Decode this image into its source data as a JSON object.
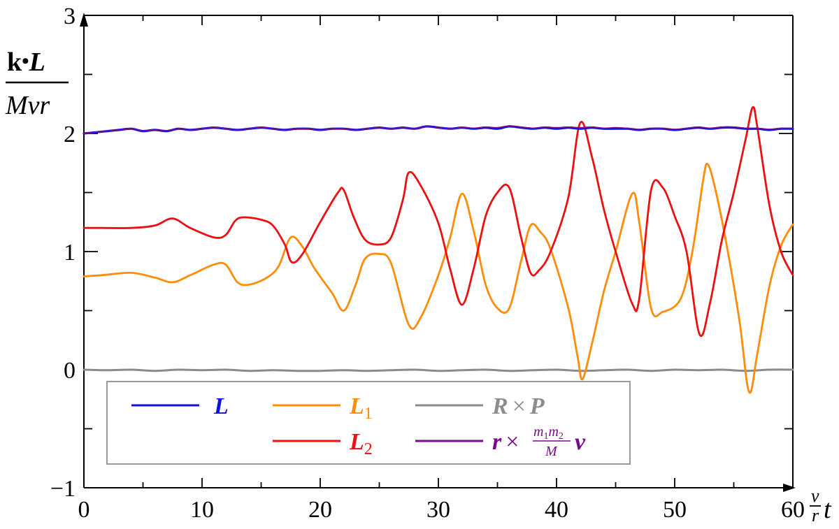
{
  "chart_data": {
    "type": "line",
    "xlim": [
      0,
      60
    ],
    "ylim": [
      -1,
      3
    ],
    "x_ticks": [
      "0",
      "10",
      "20",
      "30",
      "40",
      "50",
      "60"
    ],
    "y_ticks": [
      "−1",
      "0",
      "1",
      "2",
      "3"
    ],
    "x_minor_step": 5,
    "y_minor_step": 0.5,
    "grid": false,
    "legend_position": "lower-left",
    "xlabel": {
      "frac_num": "v",
      "frac_den": "r",
      "var": "t"
    },
    "ylabel": {
      "num_k": "k",
      "num_dot": "•",
      "num_L": "L",
      "den": "Mvr"
    },
    "series": [
      {
        "name": "L",
        "color": "#1010e6",
        "legend": {
          "main": "L"
        },
        "points": [
          [
            0,
            2.0
          ],
          [
            1,
            2.01
          ],
          [
            2,
            2.02
          ],
          [
            3,
            2.03
          ],
          [
            4,
            2.04
          ],
          [
            5,
            2.02
          ],
          [
            6,
            2.03
          ],
          [
            7,
            2.02
          ],
          [
            8,
            2.04
          ],
          [
            9,
            2.03
          ],
          [
            10,
            2.04
          ],
          [
            11,
            2.05
          ],
          [
            12,
            2.04
          ],
          [
            13,
            2.03
          ],
          [
            14,
            2.04
          ],
          [
            15,
            2.05
          ],
          [
            16,
            2.04
          ],
          [
            17,
            2.03
          ],
          [
            18,
            2.04
          ],
          [
            19,
            2.04
          ],
          [
            20,
            2.03
          ],
          [
            21,
            2.04
          ],
          [
            22,
            2.04
          ],
          [
            23,
            2.03
          ],
          [
            24,
            2.04
          ],
          [
            25,
            2.05
          ],
          [
            26,
            2.04
          ],
          [
            27,
            2.05
          ],
          [
            28,
            2.04
          ],
          [
            29,
            2.06
          ],
          [
            30,
            2.05
          ],
          [
            31,
            2.04
          ],
          [
            32,
            2.05
          ],
          [
            33,
            2.04
          ],
          [
            34,
            2.05
          ],
          [
            35,
            2.04
          ],
          [
            36,
            2.06
          ],
          [
            37,
            2.05
          ],
          [
            38,
            2.04
          ],
          [
            39,
            2.05
          ],
          [
            40,
            2.04
          ],
          [
            41,
            2.05
          ],
          [
            42,
            2.04
          ],
          [
            43,
            2.05
          ],
          [
            44,
            2.04
          ],
          [
            45,
            2.04
          ],
          [
            46,
            2.04
          ],
          [
            47,
            2.03
          ],
          [
            48,
            2.04
          ],
          [
            49,
            2.04
          ],
          [
            50,
            2.03
          ],
          [
            51,
            2.04
          ],
          [
            52,
            2.05
          ],
          [
            53,
            2.04
          ],
          [
            54,
            2.05
          ],
          [
            55,
            2.05
          ],
          [
            56,
            2.04
          ],
          [
            57,
            2.04
          ],
          [
            58,
            2.03
          ],
          [
            59,
            2.04
          ],
          [
            60,
            2.04
          ]
        ]
      },
      {
        "name": "L1",
        "color": "#ff8c0a",
        "legend": {
          "main": "L",
          "sub": "1"
        },
        "points": [
          [
            0,
            0.79
          ],
          [
            1.5,
            0.8
          ],
          [
            4,
            0.82
          ],
          [
            6,
            0.78
          ],
          [
            7.5,
            0.74
          ],
          [
            9,
            0.8
          ],
          [
            11,
            0.89
          ],
          [
            12,
            0.89
          ],
          [
            13,
            0.74
          ],
          [
            14,
            0.72
          ],
          [
            15.5,
            0.78
          ],
          [
            16.5,
            0.88
          ],
          [
            17.5,
            1.12
          ],
          [
            18.5,
            1.04
          ],
          [
            19.5,
            0.86
          ],
          [
            21,
            0.65
          ],
          [
            22,
            0.5
          ],
          [
            23,
            0.72
          ],
          [
            23.8,
            0.94
          ],
          [
            25,
            0.98
          ],
          [
            26,
            0.9
          ],
          [
            27.5,
            0.38
          ],
          [
            28.5,
            0.44
          ],
          [
            30,
            0.8
          ],
          [
            31,
            1.12
          ],
          [
            32,
            1.49
          ],
          [
            33,
            1.17
          ],
          [
            34,
            0.72
          ],
          [
            35,
            0.52
          ],
          [
            36,
            0.52
          ],
          [
            37,
            0.92
          ],
          [
            37.8,
            1.22
          ],
          [
            38.6,
            1.17
          ],
          [
            39.5,
            1.02
          ],
          [
            41,
            0.52
          ],
          [
            41.8,
            0.1
          ],
          [
            42.2,
            -0.08
          ],
          [
            43,
            0.22
          ],
          [
            44,
            0.66
          ],
          [
            45,
            1.0
          ],
          [
            46.4,
            1.49
          ],
          [
            47,
            1.25
          ],
          [
            48,
            0.52
          ],
          [
            49,
            0.49
          ],
          [
            50.5,
            0.6
          ],
          [
            51.5,
            1.0
          ],
          [
            52.4,
            1.6
          ],
          [
            52.8,
            1.74
          ],
          [
            53.5,
            1.5
          ],
          [
            54.5,
            1.0
          ],
          [
            55.5,
            0.4
          ],
          [
            56.3,
            -0.19
          ],
          [
            57,
            0.14
          ],
          [
            58,
            0.7
          ],
          [
            59,
            1.05
          ],
          [
            60,
            1.23
          ]
        ]
      },
      {
        "name": "L2",
        "color": "#ee1010",
        "legend": {
          "main": "L",
          "sub": "2"
        },
        "points": [
          [
            0,
            1.2
          ],
          [
            1.5,
            1.2
          ],
          [
            4,
            1.2
          ],
          [
            6,
            1.22
          ],
          [
            7.5,
            1.28
          ],
          [
            9,
            1.2
          ],
          [
            11,
            1.12
          ],
          [
            12,
            1.14
          ],
          [
            12.8,
            1.26
          ],
          [
            13.5,
            1.29
          ],
          [
            15,
            1.27
          ],
          [
            16,
            1.22
          ],
          [
            17,
            1.06
          ],
          [
            17.6,
            0.91
          ],
          [
            18.5,
            0.98
          ],
          [
            20,
            1.25
          ],
          [
            21.5,
            1.5
          ],
          [
            22,
            1.52
          ],
          [
            22.8,
            1.3
          ],
          [
            23.8,
            1.1
          ],
          [
            25,
            1.06
          ],
          [
            26,
            1.12
          ],
          [
            27,
            1.44
          ],
          [
            27.5,
            1.67
          ],
          [
            28.5,
            1.56
          ],
          [
            30,
            1.24
          ],
          [
            31,
            0.85
          ],
          [
            32,
            0.55
          ],
          [
            33,
            0.86
          ],
          [
            34,
            1.3
          ],
          [
            35,
            1.5
          ],
          [
            36,
            1.54
          ],
          [
            37,
            1.12
          ],
          [
            37.8,
            0.82
          ],
          [
            38.5,
            0.84
          ],
          [
            39.5,
            1.0
          ],
          [
            41,
            1.46
          ],
          [
            42,
            2.09
          ],
          [
            43,
            1.8
          ],
          [
            44,
            1.36
          ],
          [
            45,
            1.0
          ],
          [
            46.4,
            0.56
          ],
          [
            47,
            0.6
          ],
          [
            48,
            1.52
          ],
          [
            49,
            1.54
          ],
          [
            50,
            1.3
          ],
          [
            51,
            1.0
          ],
          [
            52.1,
            0.3
          ],
          [
            53,
            0.57
          ],
          [
            54,
            1.1
          ],
          [
            55,
            1.5
          ],
          [
            56,
            1.95
          ],
          [
            56.6,
            2.22
          ],
          [
            57,
            2.05
          ],
          [
            58,
            1.4
          ],
          [
            59,
            1.0
          ],
          [
            60,
            0.8
          ]
        ]
      },
      {
        "name": "R×P",
        "color": "#8c8c8c",
        "legend": {
          "main": "R",
          "mid": "×",
          "main2": "P"
        },
        "points": [
          [
            0,
            0.0
          ],
          [
            2,
            -0.005
          ],
          [
            4,
            0.0
          ],
          [
            6,
            -0.01
          ],
          [
            8,
            0.0
          ],
          [
            10,
            -0.005
          ],
          [
            12,
            0.0
          ],
          [
            14,
            -0.01
          ],
          [
            16,
            -0.005
          ],
          [
            18,
            -0.01
          ],
          [
            20,
            -0.01
          ],
          [
            22,
            -0.005
          ],
          [
            24,
            -0.01
          ],
          [
            26,
            -0.005
          ],
          [
            28,
            0.0
          ],
          [
            30,
            -0.01
          ],
          [
            32,
            -0.005
          ],
          [
            34,
            0.0
          ],
          [
            36,
            -0.01
          ],
          [
            38,
            -0.005
          ],
          [
            40,
            0.0
          ],
          [
            42,
            -0.01
          ],
          [
            44,
            -0.005
          ],
          [
            46,
            0.0
          ],
          [
            48,
            -0.01
          ],
          [
            50,
            0.0
          ],
          [
            52,
            -0.005
          ],
          [
            54,
            0.0
          ],
          [
            56,
            -0.01
          ],
          [
            58,
            0.0
          ],
          [
            60,
            0.0
          ]
        ]
      },
      {
        "name": "r×(m1m2/M)v",
        "color": "#780a8c",
        "legend": {
          "main": "r",
          "mid": "×",
          "frac_num": "m",
          "frac_num_sub1": "1",
          "frac_num2": "m",
          "frac_num_sub2": "2",
          "frac_den": "M",
          "tail": "v"
        },
        "points": [
          [
            0,
            2.0
          ],
          [
            1,
            2.01
          ],
          [
            2,
            2.02
          ],
          [
            3,
            2.03
          ],
          [
            4,
            2.04
          ],
          [
            5,
            2.02
          ],
          [
            6,
            2.03
          ],
          [
            7,
            2.02
          ],
          [
            8,
            2.04
          ],
          [
            9,
            2.03
          ],
          [
            10,
            2.04
          ],
          [
            11,
            2.05
          ],
          [
            12,
            2.04
          ],
          [
            13,
            2.03
          ],
          [
            14,
            2.04
          ],
          [
            15,
            2.05
          ],
          [
            16,
            2.04
          ],
          [
            17,
            2.03
          ],
          [
            18,
            2.04
          ],
          [
            19,
            2.04
          ],
          [
            20,
            2.03
          ],
          [
            21,
            2.04
          ],
          [
            22,
            2.04
          ],
          [
            23,
            2.03
          ],
          [
            24,
            2.04
          ],
          [
            25,
            2.05
          ],
          [
            26,
            2.04
          ],
          [
            27,
            2.05
          ],
          [
            28,
            2.04
          ],
          [
            29,
            2.06
          ],
          [
            30,
            2.05
          ],
          [
            31,
            2.04
          ],
          [
            32,
            2.05
          ],
          [
            33,
            2.045
          ],
          [
            34,
            2.055
          ],
          [
            35,
            2.05
          ],
          [
            36,
            2.065
          ],
          [
            37,
            2.055
          ],
          [
            38,
            2.045
          ],
          [
            39,
            2.055
          ],
          [
            40,
            2.05
          ],
          [
            41,
            2.055
          ],
          [
            42,
            2.05
          ],
          [
            43,
            2.055
          ],
          [
            44,
            2.045
          ],
          [
            45,
            2.05
          ],
          [
            46,
            2.045
          ],
          [
            47,
            2.035
          ],
          [
            48,
            2.045
          ],
          [
            49,
            2.045
          ],
          [
            50,
            2.035
          ],
          [
            51,
            2.045
          ],
          [
            52,
            2.055
          ],
          [
            53,
            2.045
          ],
          [
            54,
            2.055
          ],
          [
            55,
            2.055
          ],
          [
            56,
            2.045
          ],
          [
            57,
            2.045
          ],
          [
            58,
            2.035
          ],
          [
            59,
            2.045
          ],
          [
            60,
            2.045
          ]
        ]
      }
    ]
  }
}
